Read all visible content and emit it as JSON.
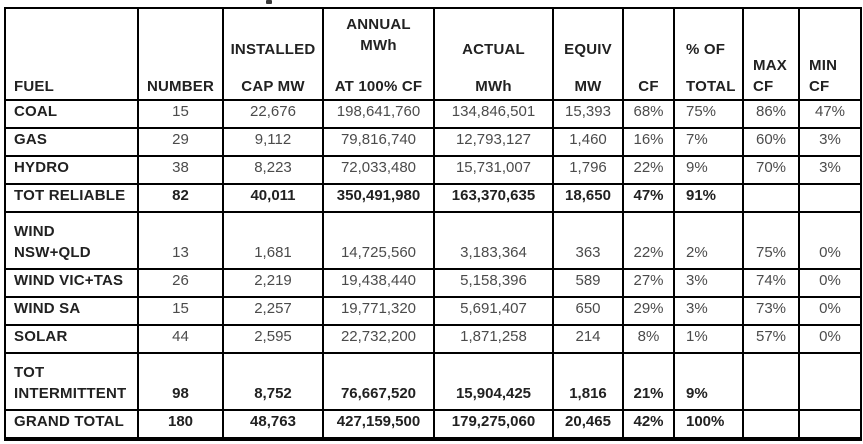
{
  "colors": {
    "background": "#ffffff",
    "border": "#000000",
    "label_text": "#212121",
    "value_text": "#4b4b4b"
  },
  "chart_data": {
    "type": "table",
    "title": "",
    "columns": [
      {
        "id": "fuel",
        "label": "FUEL",
        "top": [],
        "bottom": [
          "FUEL"
        ]
      },
      {
        "id": "number",
        "label": "NUMBER",
        "top": [],
        "bottom": [
          "NUMBER"
        ]
      },
      {
        "id": "installed",
        "label": "INSTALLED CAP MW",
        "top": [
          "INSTALLED"
        ],
        "bottom": [
          "CAP MW"
        ]
      },
      {
        "id": "annual",
        "label": "ANNUAL MWh AT 100% CF",
        "top": [
          "ANNUAL",
          "MWh"
        ],
        "bottom": [
          "AT 100% CF"
        ]
      },
      {
        "id": "actual",
        "label": "ACTUAL MWh",
        "top": [
          "ACTUAL"
        ],
        "bottom": [
          "MWh"
        ]
      },
      {
        "id": "equiv",
        "label": "EQUIV MW",
        "top": [
          "EQUIV"
        ],
        "bottom": [
          "MW"
        ]
      },
      {
        "id": "cf",
        "label": "CF",
        "top": [],
        "bottom": [
          "CF"
        ]
      },
      {
        "id": "pct",
        "label": "% OF TOTAL",
        "top": [
          "% OF"
        ],
        "bottom": [
          "TOTAL"
        ]
      },
      {
        "id": "maxcf",
        "label": "MAX CF",
        "top": [],
        "bottom": [
          "MAX",
          "CF"
        ]
      },
      {
        "id": "mincf",
        "label": "MIN CF",
        "top": [],
        "bottom": [
          "MIN",
          "CF"
        ]
      }
    ],
    "rows": [
      {
        "id": "coal",
        "label_lines": [
          "COAL"
        ],
        "bold": false,
        "values": [
          "15",
          "22,676",
          "198,641,760",
          "134,846,501",
          "15,393",
          "68%",
          "75%",
          "86%",
          "47%"
        ]
      },
      {
        "id": "gas",
        "label_lines": [
          "GAS"
        ],
        "bold": false,
        "values": [
          "29",
          "9,112",
          "79,816,740",
          "12,793,127",
          "1,460",
          "16%",
          "7%",
          "60%",
          "3%"
        ]
      },
      {
        "id": "hydro",
        "label_lines": [
          "HYDRO"
        ],
        "bold": false,
        "values": [
          "38",
          "8,223",
          "72,033,480",
          "15,731,007",
          "1,796",
          "22%",
          "9%",
          "70%",
          "3%"
        ]
      },
      {
        "id": "tot-reliable",
        "label_lines": [
          "TOT RELIABLE"
        ],
        "bold": true,
        "values": [
          "82",
          "40,011",
          "350,491,980",
          "163,370,635",
          "18,650",
          "47%",
          "91%",
          "",
          ""
        ]
      },
      {
        "id": "wind-nsw-qld",
        "label_lines": [
          "WIND",
          "NSW+QLD"
        ],
        "bold": false,
        "values": [
          "13",
          "1,681",
          "14,725,560",
          "3,183,364",
          "363",
          "22%",
          "2%",
          "75%",
          "0%"
        ]
      },
      {
        "id": "wind-vic-tas",
        "label_lines": [
          "WIND VIC+TAS"
        ],
        "bold": false,
        "values": [
          "26",
          "2,219",
          "19,438,440",
          "5,158,396",
          "589",
          "27%",
          "3%",
          "74%",
          "0%"
        ]
      },
      {
        "id": "wind-sa",
        "label_lines": [
          "WIND SA"
        ],
        "bold": false,
        "values": [
          "15",
          "2,257",
          "19,771,320",
          "5,691,407",
          "650",
          "29%",
          "3%",
          "73%",
          "0%"
        ]
      },
      {
        "id": "solar",
        "label_lines": [
          "SOLAR"
        ],
        "bold": false,
        "values": [
          "44",
          "2,595",
          "22,732,200",
          "1,871,258",
          "214",
          "8%",
          "1%",
          "57%",
          "0%"
        ]
      },
      {
        "id": "tot-intermittent",
        "label_lines": [
          "TOT",
          "INTERMITTENT"
        ],
        "bold": true,
        "values": [
          "98",
          "8,752",
          "76,667,520",
          "15,904,425",
          "1,816",
          "21%",
          "9%",
          "",
          ""
        ]
      },
      {
        "id": "grand-total",
        "label_lines": [
          "GRAND TOTAL"
        ],
        "bold": true,
        "values": [
          "180",
          "48,763",
          "427,159,500",
          "179,275,060",
          "20,465",
          "42%",
          "100%",
          "",
          ""
        ]
      }
    ]
  }
}
